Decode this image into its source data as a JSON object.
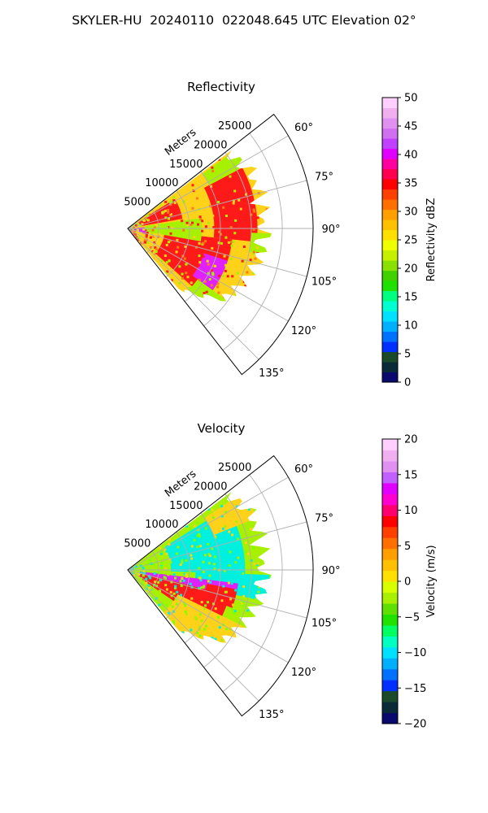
{
  "figure": {
    "title": "SKYLER-HU  20240110  022048.645 UTC Elevation 02°"
  },
  "colors": {
    "red": "#ff1a1a",
    "magenta": "#e020ff",
    "yellow": "#ffd21a",
    "lime": "#a6f000",
    "cyan": "#00f0e0",
    "grid": "#b0b0b0"
  },
  "chart_data": [
    {
      "type": "ppi",
      "title": "Reflectivity",
      "radial_label": "Meters",
      "radial_ticks": [
        "5000",
        "10000",
        "15000",
        "20000",
        "25000"
      ],
      "r_max_m": 30000,
      "azimuth_range_deg": [
        52,
        142
      ],
      "azimuth_ticks": [
        "60°",
        "75°",
        "90°",
        "105°",
        "120°",
        "135°"
      ],
      "colorbar": {
        "label": "Reflectivity dBZ",
        "min": 0,
        "max": 50,
        "ticks": [
          "0",
          "5",
          "10",
          "15",
          "20",
          "25",
          "30",
          "35",
          "40",
          "45",
          "50"
        ]
      },
      "field_description": "reflectivity sector"
    },
    {
      "type": "ppi",
      "title": "Velocity",
      "radial_label": "Meters",
      "radial_ticks": [
        "5000",
        "10000",
        "15000",
        "20000",
        "25000"
      ],
      "r_max_m": 30000,
      "azimuth_range_deg": [
        52,
        142
      ],
      "azimuth_ticks": [
        "60°",
        "75°",
        "90°",
        "105°",
        "120°",
        "135°"
      ],
      "colorbar": {
        "label": "Velocity (m/s)",
        "min": -20,
        "max": 20,
        "ticks": [
          "−20",
          "−15",
          "−10",
          "−5",
          "0",
          "5",
          "10",
          "15",
          "20"
        ]
      },
      "field_description": "velocity sector"
    }
  ]
}
